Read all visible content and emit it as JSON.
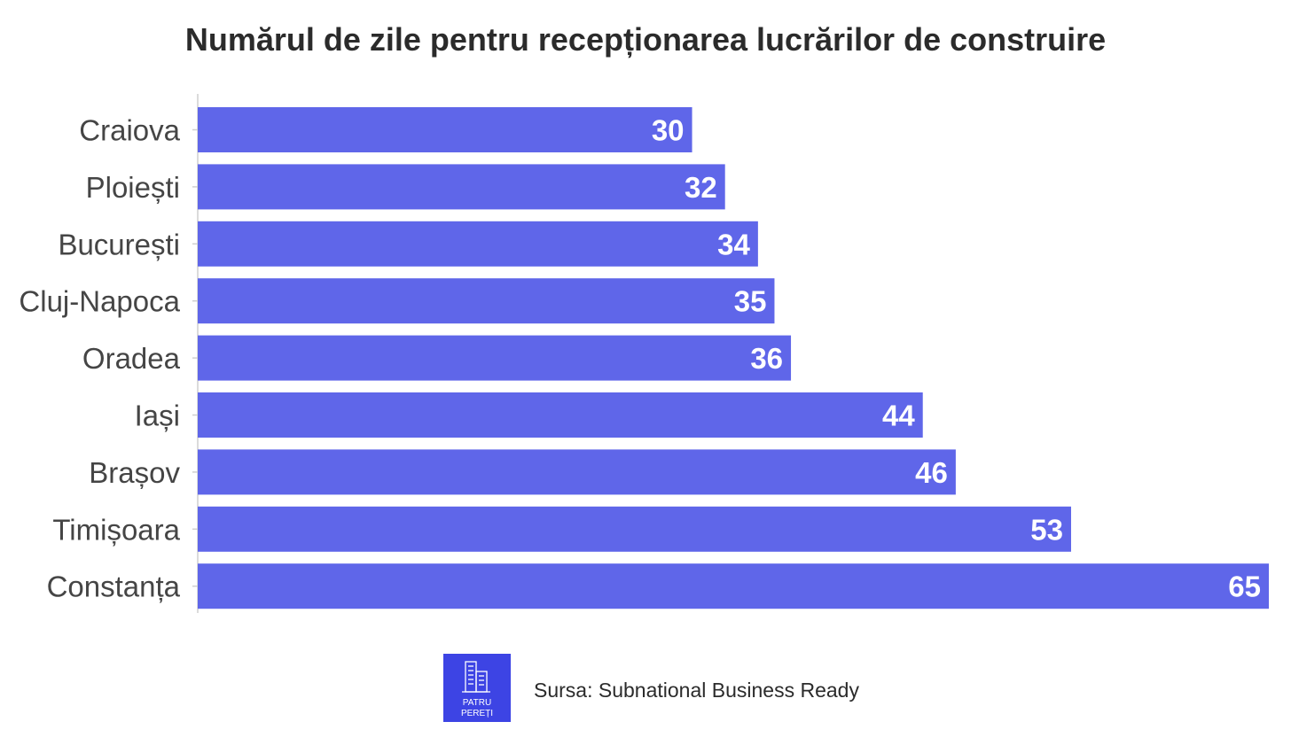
{
  "colors": {
    "bar": "#5f66e9",
    "axis": "#cfcfcf",
    "logo_bg": "#3d44e4"
  },
  "chart_data": {
    "type": "bar",
    "orientation": "horizontal",
    "title": "Numărul de zile pentru recepționarea lucrărilor de construire",
    "categories": [
      "Craiova",
      "Ploiești",
      "București",
      "Cluj-Napoca",
      "Oradea",
      "Iași",
      "Brașov",
      "Timișoara",
      "Constanța"
    ],
    "values": [
      30,
      32,
      34,
      35,
      36,
      44,
      46,
      53,
      65
    ],
    "xlim": [
      0,
      65
    ],
    "grid": false,
    "legend": "none",
    "data_labels": "inside-end"
  },
  "footer": {
    "logo": {
      "icon": "building-icon",
      "line1": "PATRU",
      "line2": "PEREȚI"
    },
    "source": "Sursa: Subnational Business Ready"
  }
}
